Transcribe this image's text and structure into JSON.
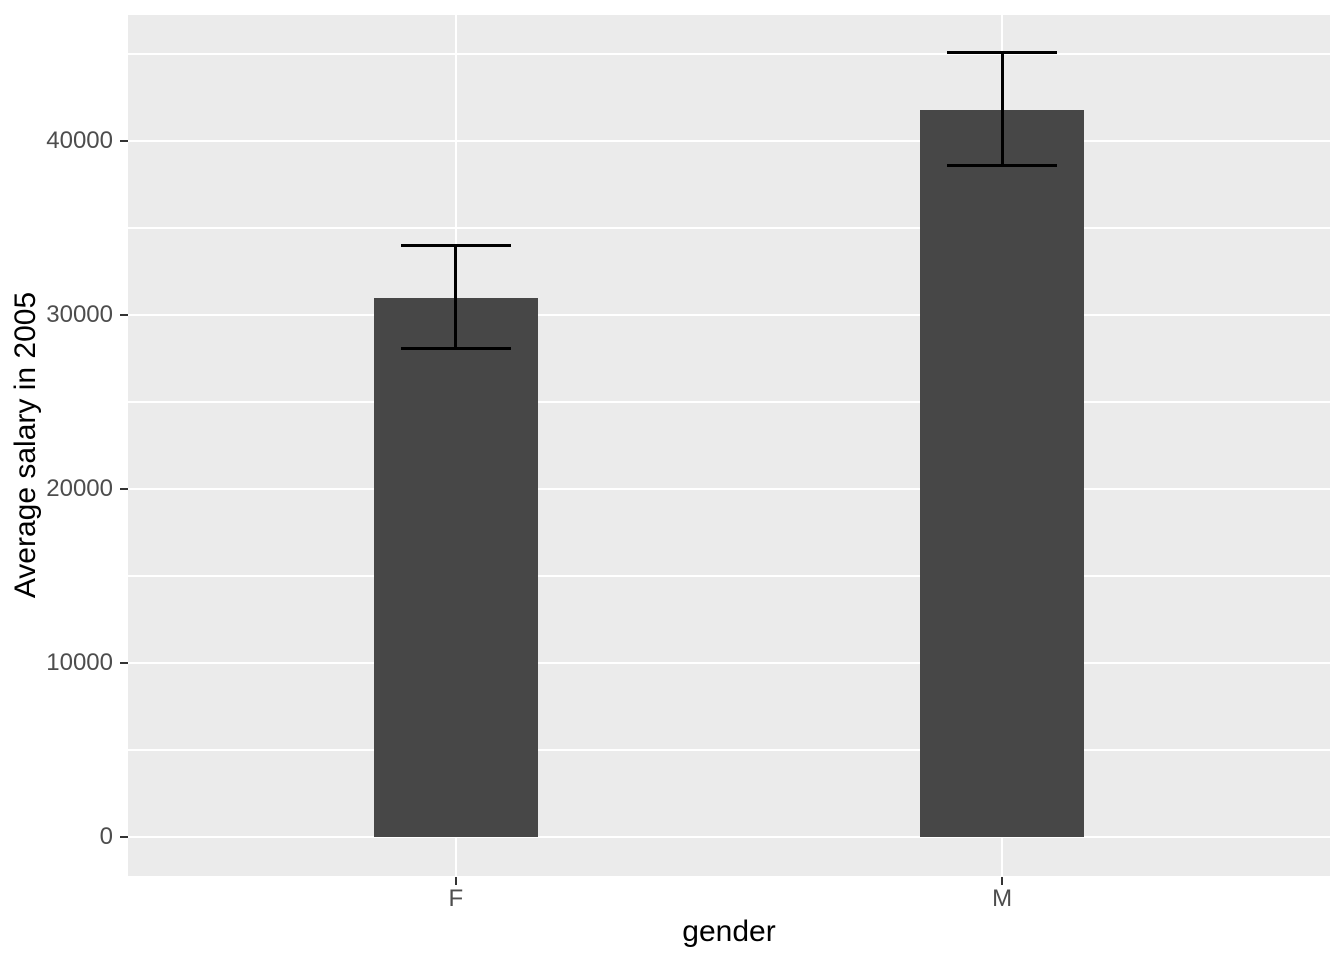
{
  "style": {
    "background": "#FFFFFF",
    "panel_background": "#EBEBEB",
    "grid_color": "#FFFFFF",
    "bar_fill": "#474747",
    "errorbar_color": "#000000",
    "tick_mark_color": "#333333",
    "tick_label_color": "#4D4D4D",
    "axis_title_color": "#000000"
  },
  "chart_data": {
    "type": "bar",
    "title": "",
    "xlabel": "gender",
    "ylabel": "Average salary in 2005",
    "categories": [
      "F",
      "M"
    ],
    "values": [
      31000,
      41800
    ],
    "error_low": [
      28100,
      38600
    ],
    "error_high": [
      34000,
      45100
    ],
    "ylim": [
      -2250,
      47250
    ],
    "y_major_ticks": [
      0,
      10000,
      20000,
      30000,
      40000
    ],
    "y_minor_ticks": [
      5000,
      15000,
      25000,
      35000,
      45000
    ],
    "y_tick_labels": [
      "0",
      "10000",
      "20000",
      "30000",
      "40000"
    ],
    "grid": true,
    "legend": "none",
    "theme": "ggplot2-gray"
  }
}
